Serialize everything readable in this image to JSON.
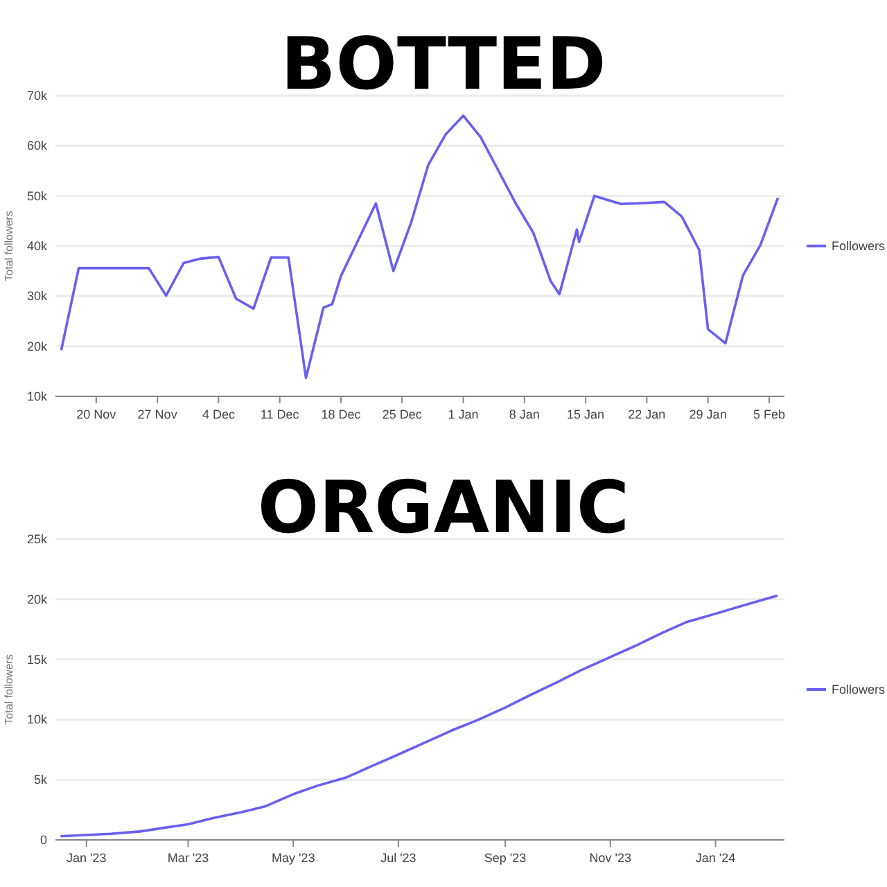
{
  "chart_data": [
    {
      "type": "line",
      "title": "BOTTED",
      "ylabel": "Total followers",
      "grid": "y",
      "legend": "right",
      "marker": "none",
      "line_style": "solid",
      "x": [
        "2023-11-16",
        "2023-11-18",
        "2023-11-26",
        "2023-11-28",
        "2023-11-30",
        "2023-12-02",
        "2023-12-04",
        "2023-12-06",
        "2023-12-08",
        "2023-12-10",
        "2023-12-12",
        "2023-12-14",
        "2023-12-16",
        "2023-12-17",
        "2023-12-18",
        "2023-12-22",
        "2023-12-24",
        "2023-12-26",
        "2023-12-28",
        "2023-12-30",
        "2024-01-01",
        "2024-01-03",
        "2024-01-05",
        "2024-01-07",
        "2024-01-09",
        "2024-01-11",
        "2024-01-12",
        "2024-01-14",
        "2024-01-14T06:00",
        "2024-01-16",
        "2024-01-19",
        "2024-01-21",
        "2024-01-24",
        "2024-01-26",
        "2024-01-28",
        "2024-01-29",
        "2024-01-31",
        "2024-02-02",
        "2024-02-04",
        "2024-02-06"
      ],
      "series": [
        {
          "name": "Followers",
          "color": "#6a5ff0",
          "values": [
            19200,
            35600,
            35600,
            30100,
            36600,
            37500,
            37800,
            29500,
            27500,
            37700,
            37700,
            13700,
            27700,
            28400,
            34000,
            48500,
            35000,
            44500,
            56200,
            62300,
            66000,
            61700,
            55100,
            48500,
            42700,
            33000,
            30400,
            43300,
            40800,
            50000,
            48400,
            48500,
            48800,
            45900,
            39200,
            23400,
            20600,
            34100,
            40200,
            49600
          ]
        }
      ],
      "xlim": [
        "2023-11-15T08:00",
        "2024-02-06T18:00"
      ],
      "xticks": [
        {
          "value": "2023-11-20",
          "label": "20 Nov"
        },
        {
          "value": "2023-11-27",
          "label": "27 Nov"
        },
        {
          "value": "2023-12-04",
          "label": "4 Dec"
        },
        {
          "value": "2023-12-11",
          "label": "11 Dec"
        },
        {
          "value": "2023-12-18",
          "label": "18 Dec"
        },
        {
          "value": "2023-12-25",
          "label": "25 Dec"
        },
        {
          "value": "2024-01-01",
          "label": "1 Jan"
        },
        {
          "value": "2024-01-08",
          "label": "8 Jan"
        },
        {
          "value": "2024-01-15",
          "label": "15 Jan"
        },
        {
          "value": "2024-01-22",
          "label": "22 Jan"
        },
        {
          "value": "2024-01-29",
          "label": "29 Jan"
        },
        {
          "value": "2024-02-05",
          "label": "5 Feb"
        }
      ],
      "ylim": [
        10000,
        70000
      ],
      "yticks": [
        {
          "value": 10000,
          "label": "10k"
        },
        {
          "value": 20000,
          "label": "20k"
        },
        {
          "value": 30000,
          "label": "30k"
        },
        {
          "value": 40000,
          "label": "40k"
        },
        {
          "value": 50000,
          "label": "50k"
        },
        {
          "value": 60000,
          "label": "60k"
        },
        {
          "value": 70000,
          "label": "70k"
        }
      ]
    },
    {
      "type": "line",
      "title": "ORGANIC",
      "ylabel": "Total followers",
      "grid": "y",
      "legend": "right",
      "marker": "none",
      "line_style": "solid",
      "x": [
        "2022-12-17",
        "2023-01-15",
        "2023-02-01",
        "2023-02-15",
        "2023-03-01",
        "2023-03-15",
        "2023-04-01",
        "2023-04-15",
        "2023-05-01",
        "2023-05-15",
        "2023-06-01",
        "2023-06-15",
        "2023-07-01",
        "2023-07-15",
        "2023-08-01",
        "2023-08-15",
        "2023-09-01",
        "2023-09-15",
        "2023-10-01",
        "2023-10-15",
        "2023-11-01",
        "2023-11-15",
        "2023-12-01",
        "2023-12-15",
        "2024-01-01",
        "2024-01-15",
        "2024-02-01",
        "2024-02-06"
      ],
      "series": [
        {
          "name": "Followers",
          "color": "#6a5ff0",
          "values": [
            300,
            500,
            700,
            1000,
            1300,
            1800,
            2300,
            2800,
            3800,
            4500,
            5200,
            6100,
            7100,
            8000,
            9100,
            9900,
            11000,
            12000,
            13100,
            14100,
            15200,
            16100,
            17200,
            18100,
            18800,
            19400,
            20100,
            20300
          ]
        }
      ],
      "xlim": [
        "2022-12-14",
        "2024-02-10"
      ],
      "xticks": [
        {
          "value": "2023-01-01",
          "label": "Jan '23"
        },
        {
          "value": "2023-03-01",
          "label": "Mar '23"
        },
        {
          "value": "2023-05-01",
          "label": "May '23"
        },
        {
          "value": "2023-07-01",
          "label": "Jul '23"
        },
        {
          "value": "2023-09-01",
          "label": "Sep '23"
        },
        {
          "value": "2023-11-01",
          "label": "Nov '23"
        },
        {
          "value": "2024-01-01",
          "label": "Jan '24"
        }
      ],
      "ylim": [
        0,
        25000
      ],
      "yticks": [
        0,
        {
          "value": 5000,
          "label": "5k"
        },
        {
          "value": 10000,
          "label": "10k"
        },
        {
          "value": 15000,
          "label": "15k"
        },
        {
          "value": 20000,
          "label": "20k"
        },
        {
          "value": 25000,
          "label": "25k"
        }
      ]
    }
  ]
}
